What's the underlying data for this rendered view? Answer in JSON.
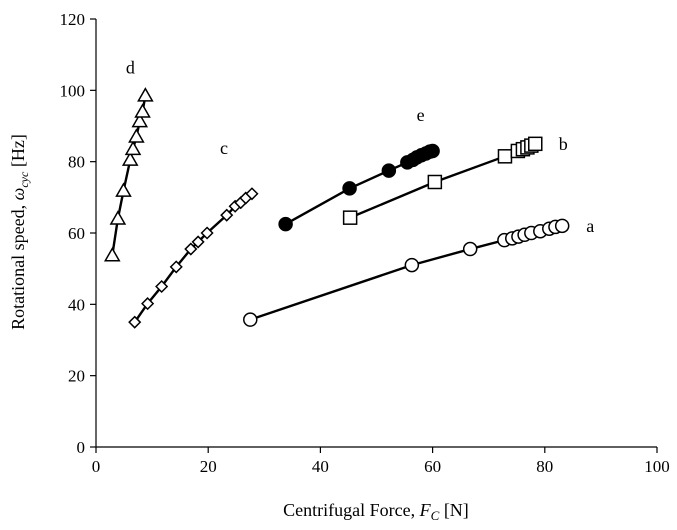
{
  "chart_data": {
    "type": "scatter",
    "title": "",
    "xlabel": {
      "prefix": "Centrifugal Force, ",
      "symbol": "F",
      "subscript": "C",
      "suffix": " [N]"
    },
    "ylabel": {
      "prefix": "Rotational speed, ",
      "symbol": "ω",
      "subscript": "cyc",
      "suffix": " [Hz]"
    },
    "xlim": [
      0,
      100
    ],
    "ylim": [
      0,
      120
    ],
    "xticks": [
      0,
      20,
      40,
      60,
      80,
      100
    ],
    "yticks": [
      0,
      20,
      40,
      60,
      80,
      100,
      120
    ],
    "grid": false,
    "legend": "none",
    "colors": {
      "line": "#000000",
      "filled": "#000000",
      "hollow": "#ffffff"
    },
    "series": [
      {
        "name": "a",
        "marker": "circle-open",
        "x": [
          27.5,
          56.3,
          66.7,
          72.8,
          74.2,
          75.3,
          76.4,
          77.6,
          79.2,
          80.8,
          81.9,
          83.1
        ],
        "y": [
          35.7,
          51,
          55.5,
          58,
          58.5,
          59,
          59.5,
          60,
          60.5,
          61.2,
          61.7,
          62
        ]
      },
      {
        "name": "b",
        "marker": "square-open",
        "x": [
          45.3,
          60.4,
          72.9,
          75.2,
          76.1,
          76.9,
          77.6,
          78.3
        ],
        "y": [
          64.3,
          74.3,
          81.5,
          83,
          83.5,
          84,
          84.5,
          85
        ]
      },
      {
        "name": "c",
        "marker": "diamond-open",
        "x": [
          6.9,
          9.2,
          11.7,
          14.3,
          16.9,
          18.2,
          19.8,
          23.3,
          24.8,
          25.8,
          26.7,
          27.8
        ],
        "y": [
          35,
          40.2,
          45,
          50.5,
          55.5,
          57.5,
          60,
          65,
          67.5,
          68.5,
          69.8,
          71
        ]
      },
      {
        "name": "d",
        "marker": "triangle-open",
        "x": [
          2.9,
          3.9,
          4.9,
          6.1,
          6.6,
          7.2,
          7.8,
          8.3,
          8.8
        ],
        "y": [
          53.7,
          64,
          71.8,
          80.5,
          83.5,
          87,
          91.3,
          94,
          98.5
        ]
      },
      {
        "name": "e",
        "marker": "circle-filled",
        "x": [
          33.8,
          45.2,
          52.2,
          55.5,
          56.5,
          57.2,
          58,
          58.8,
          59.5,
          60
        ],
        "y": [
          62.5,
          72.5,
          77.5,
          79.8,
          80.5,
          81.2,
          81.8,
          82.3,
          82.8,
          83
        ]
      }
    ]
  }
}
